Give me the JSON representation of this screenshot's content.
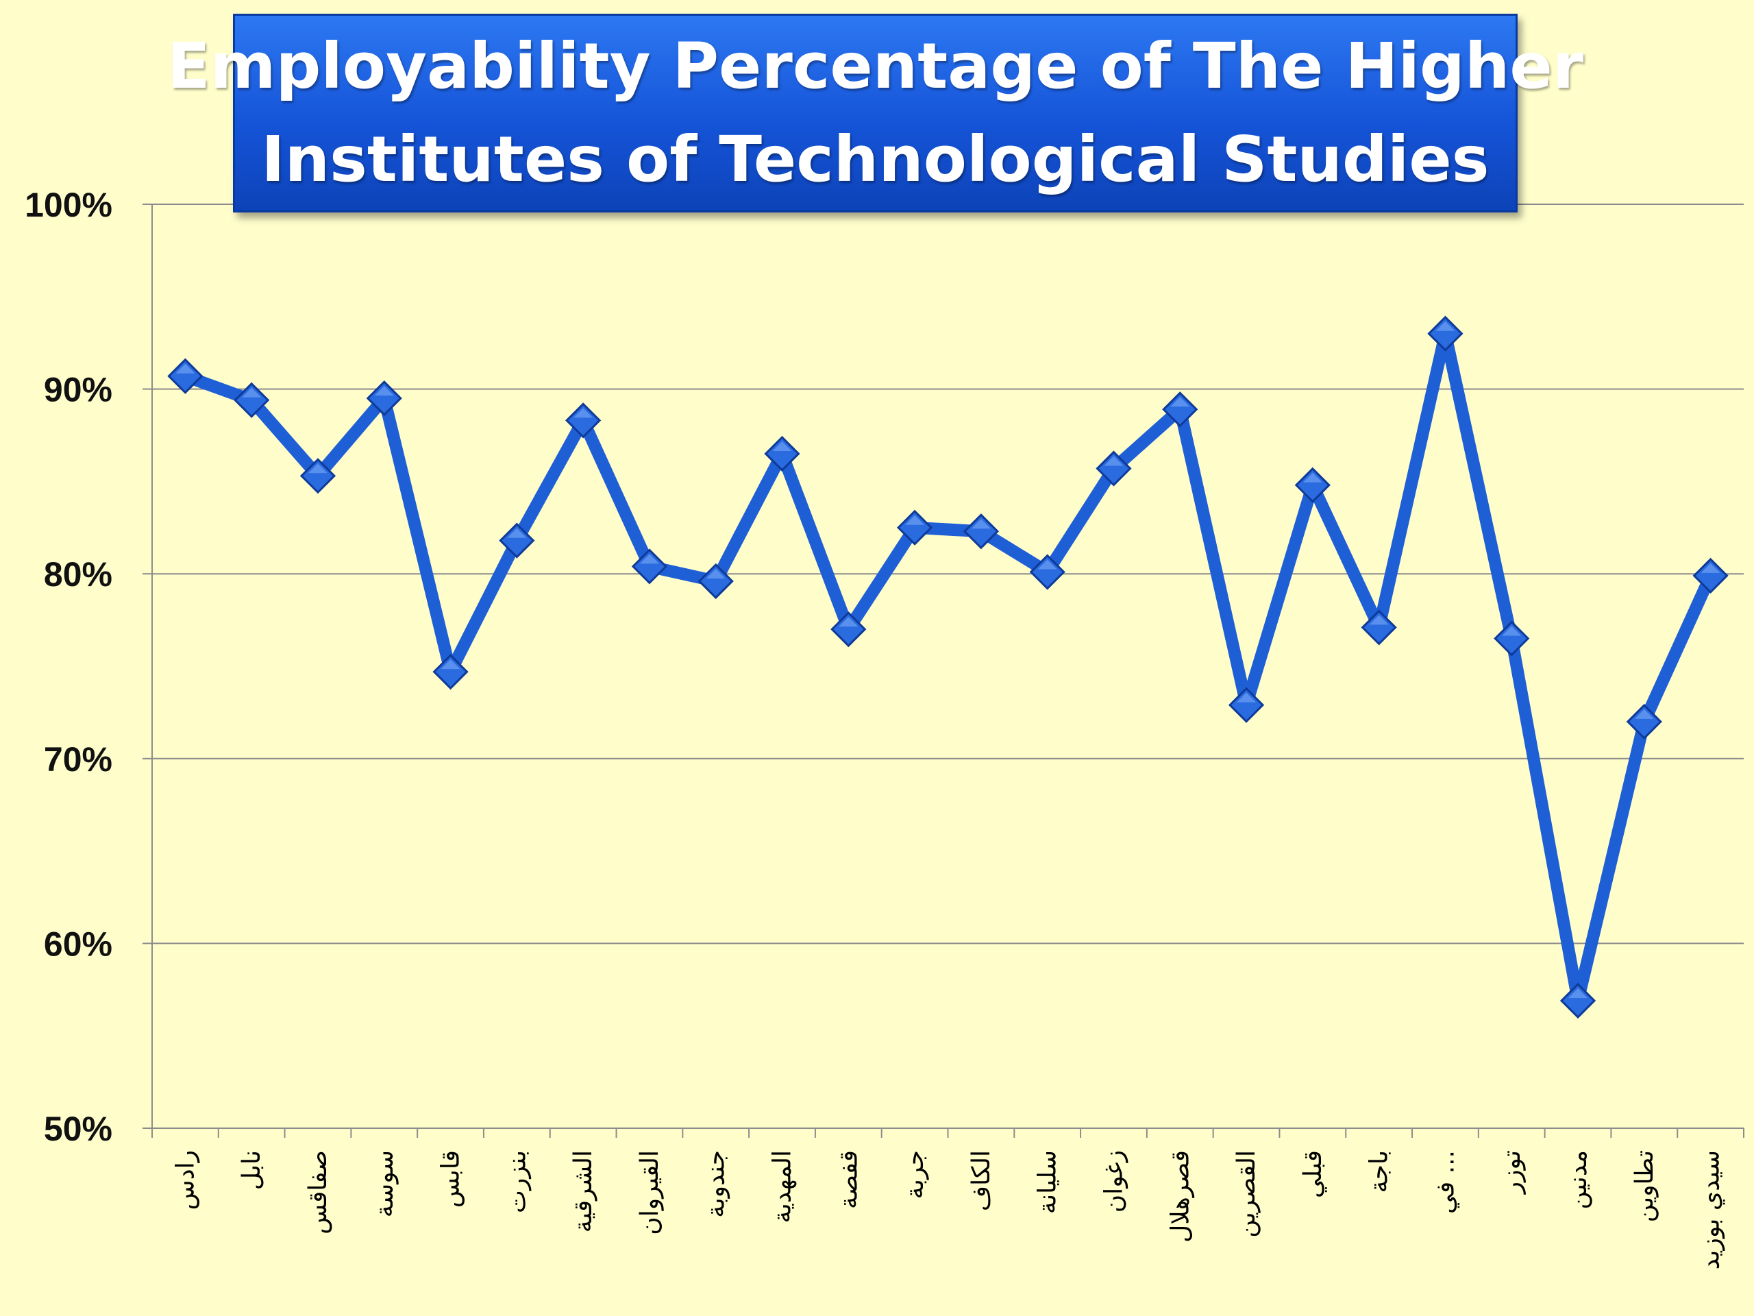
{
  "chart_data": {
    "type": "line",
    "title_lines": [
      "Employability Percentage of The Higher",
      "Institutes of Technological Studies"
    ],
    "categories": [
      "رادس",
      "نابل",
      "صفاقس",
      "سوسة",
      "قابس",
      "بنزرت",
      "الشرقية",
      "القيروان",
      "جندوبة",
      "المهدية",
      "قفصة",
      "جربة",
      "الكاف",
      "سليانة",
      "زغوان",
      "قصرهلال",
      "القصرين",
      "قبلي",
      "باجة",
      "في ...",
      "توزر",
      "مدنين",
      "تطاوين",
      "سيدي بوزيد"
    ],
    "series": [
      {
        "values": [
          90.7,
          89.4,
          85.3,
          89.5,
          74.7,
          81.8,
          88.3,
          80.4,
          79.6,
          86.5,
          77.0,
          82.5,
          82.3,
          80.1,
          85.7,
          88.9,
          72.9,
          84.8,
          77.1,
          93.0,
          76.5,
          56.9,
          72.0,
          79.9
        ]
      }
    ],
    "ylim": [
      50,
      100
    ],
    "yticks": [
      "50%",
      "60%",
      "70%",
      "80%",
      "90%",
      "100%"
    ],
    "ytick_values": [
      50,
      60,
      70,
      80,
      90,
      100
    ],
    "grid": true,
    "line_color": "#1f5fd6",
    "marker": "diamond"
  }
}
